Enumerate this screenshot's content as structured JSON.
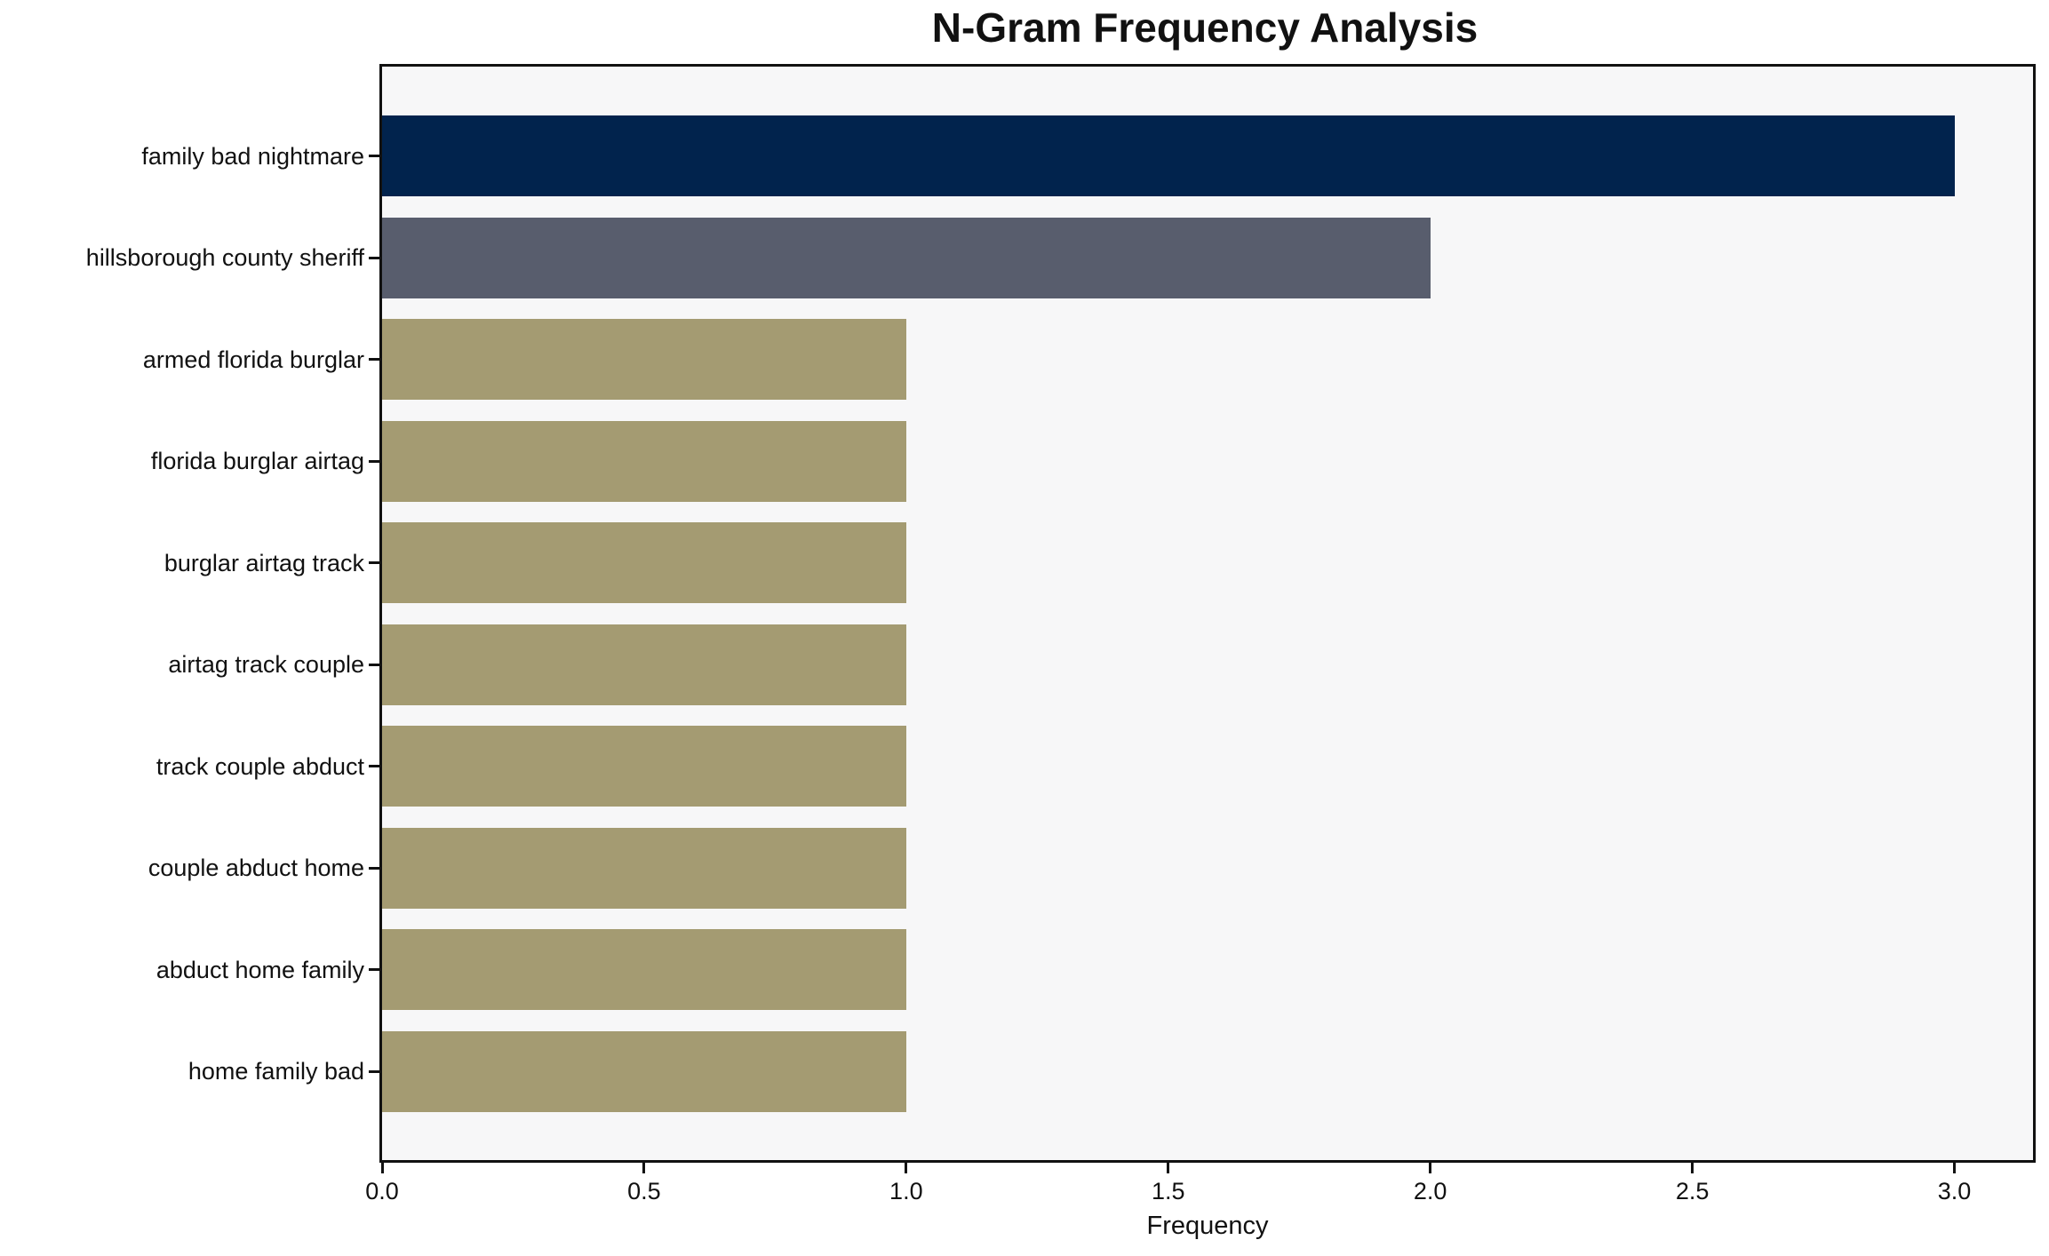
{
  "figure": {
    "background": "#ffffff"
  },
  "chart_data": {
    "type": "bar",
    "orientation": "horizontal",
    "title": "N-Gram Frequency Analysis",
    "xlabel": "Frequency",
    "ylabel": "",
    "categories": [
      "family bad nightmare",
      "hillsborough county sheriff",
      "armed florida burglar",
      "florida burglar airtag",
      "burglar airtag track",
      "airtag track couple",
      "track couple abduct",
      "couple abduct home",
      "abduct home family",
      "home family bad"
    ],
    "values": [
      3,
      2,
      1,
      1,
      1,
      1,
      1,
      1,
      1,
      1
    ],
    "bar_colors": [
      "#01234d",
      "#585d6d",
      "#a49b72",
      "#a49b72",
      "#a49b72",
      "#a49b72",
      "#a49b72",
      "#a49b72",
      "#a49b72",
      "#a49b72"
    ],
    "xlim": [
      0,
      3.15
    ],
    "xticks": [
      0,
      0.5,
      1,
      1.5,
      2,
      2.5,
      3
    ],
    "xtick_labels": [
      "0.0",
      "0.5",
      "1.0",
      "1.5",
      "2.0",
      "2.5",
      "3.0"
    ],
    "grid": false,
    "legend": "none",
    "plot_background": "#f7f7f8",
    "axis_color": "#111111"
  }
}
